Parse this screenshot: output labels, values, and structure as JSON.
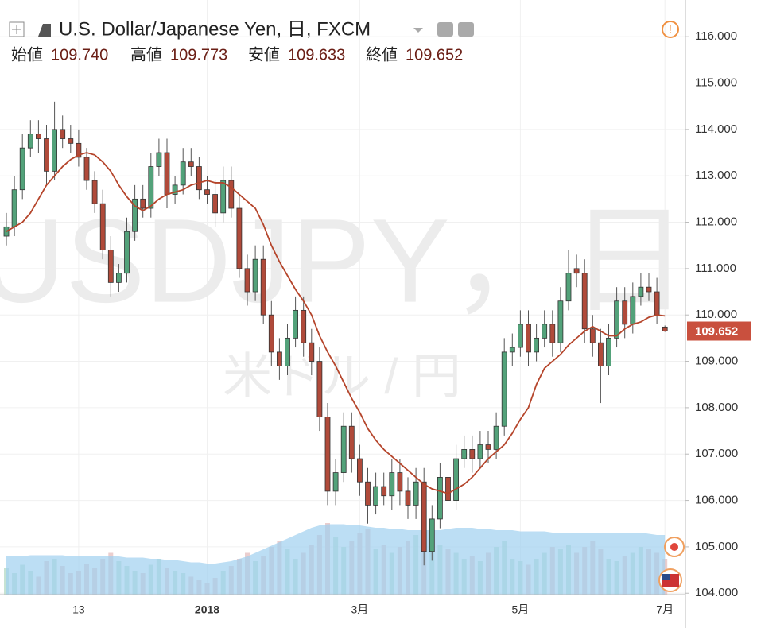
{
  "header": {
    "title": "U.S. Dollar/Japanese Yen, 日, FXCM",
    "labels": [
      "始値",
      "高値",
      "安値",
      "終値"
    ],
    "values": [
      "109.740",
      "109.773",
      "109.633",
      "109.652"
    ]
  },
  "watermark": {
    "symbol": "USDJPY，日",
    "name": "米ドル / 円"
  },
  "chart_data": {
    "type": "candlestick",
    "categories": [
      null,
      null,
      null,
      null,
      null,
      null,
      null,
      null,
      null,
      "13",
      null,
      null,
      null,
      null,
      null,
      null,
      null,
      null,
      null,
      null,
      null,
      null,
      null,
      null,
      null,
      "2018",
      null,
      null,
      null,
      null,
      null,
      null,
      null,
      null,
      null,
      null,
      null,
      null,
      null,
      null,
      null,
      null,
      null,
      null,
      "3月",
      null,
      null,
      null,
      null,
      null,
      null,
      null,
      null,
      null,
      null,
      null,
      null,
      null,
      null,
      null,
      null,
      null,
      null,
      null,
      "5月",
      null,
      null,
      null,
      null,
      null,
      null,
      null,
      null,
      null,
      null,
      null,
      null,
      null,
      null,
      null,
      null,
      null,
      "7月"
    ],
    "open": [
      111.7,
      111.9,
      112.7,
      113.6,
      113.9,
      113.8,
      113.1,
      114.0,
      113.8,
      113.7,
      113.4,
      112.9,
      112.4,
      111.4,
      110.7,
      110.9,
      111.8,
      112.5,
      112.3,
      113.2,
      113.5,
      112.6,
      112.8,
      113.3,
      113.2,
      112.7,
      112.6,
      112.2,
      112.9,
      112.3,
      111.0,
      110.5,
      111.2,
      110.0,
      109.2,
      108.9,
      109.5,
      110.1,
      109.4,
      109.0,
      107.8,
      106.2,
      106.6,
      107.6,
      106.9,
      106.4,
      105.9,
      106.3,
      106.1,
      106.6,
      106.2,
      105.9,
      106.4,
      104.9,
      105.6,
      106.5,
      106.0,
      106.9,
      107.1,
      106.9,
      107.2,
      107.1,
      107.6,
      109.2,
      109.3,
      109.8,
      109.2,
      109.5,
      109.8,
      109.4,
      110.3,
      111.0,
      110.9,
      109.7,
      109.4,
      108.9,
      109.5,
      110.3,
      109.8,
      110.4,
      110.6,
      110.5,
      109.74
    ],
    "high": [
      112.2,
      113.0,
      113.9,
      114.2,
      114.2,
      114.1,
      114.6,
      114.3,
      114.1,
      114.0,
      113.6,
      113.1,
      112.7,
      111.7,
      111.1,
      112.1,
      112.8,
      112.8,
      113.5,
      113.8,
      113.8,
      113.0,
      113.6,
      113.6,
      113.4,
      113.0,
      112.9,
      113.2,
      113.2,
      112.6,
      111.3,
      111.5,
      111.5,
      110.3,
      109.5,
      109.8,
      110.4,
      110.4,
      109.7,
      109.3,
      108.1,
      106.9,
      107.9,
      107.9,
      107.2,
      106.7,
      106.6,
      106.6,
      106.9,
      106.9,
      106.5,
      106.7,
      106.7,
      105.9,
      106.8,
      106.8,
      107.2,
      107.4,
      107.4,
      107.5,
      107.5,
      107.9,
      109.5,
      109.6,
      110.1,
      110.1,
      109.8,
      110.1,
      110.1,
      110.6,
      111.4,
      111.3,
      111.2,
      110.0,
      109.7,
      109.8,
      110.6,
      110.6,
      110.7,
      110.9,
      110.9,
      110.8,
      109.773
    ],
    "low": [
      111.5,
      111.7,
      112.5,
      113.4,
      113.5,
      112.8,
      112.9,
      113.6,
      113.5,
      113.2,
      112.7,
      112.2,
      111.2,
      110.4,
      110.5,
      110.7,
      111.6,
      112.1,
      112.1,
      113.0,
      112.3,
      112.4,
      112.6,
      113.0,
      112.5,
      112.4,
      111.9,
      112.0,
      112.1,
      110.8,
      110.2,
      110.3,
      109.8,
      108.9,
      108.6,
      108.7,
      109.3,
      109.1,
      108.7,
      107.5,
      105.9,
      105.9,
      106.4,
      106.6,
      106.1,
      105.5,
      105.7,
      105.9,
      105.8,
      105.9,
      105.6,
      105.6,
      104.6,
      104.7,
      105.4,
      105.7,
      105.8,
      106.7,
      106.6,
      106.7,
      106.8,
      106.9,
      107.4,
      108.9,
      109.1,
      108.9,
      109.0,
      109.3,
      109.1,
      109.2,
      110.1,
      110.6,
      109.4,
      109.1,
      108.1,
      108.7,
      109.3,
      109.5,
      109.6,
      110.2,
      110.3,
      109.8,
      109.633
    ],
    "close": [
      111.9,
      112.7,
      113.6,
      113.9,
      113.8,
      113.1,
      114.0,
      113.8,
      113.7,
      113.4,
      112.9,
      112.4,
      111.4,
      110.7,
      110.9,
      111.8,
      112.5,
      112.3,
      113.2,
      113.5,
      112.6,
      112.8,
      113.3,
      113.2,
      112.7,
      112.6,
      112.2,
      112.9,
      112.3,
      111.0,
      110.5,
      111.2,
      110.0,
      109.2,
      108.9,
      109.5,
      110.1,
      109.4,
      109.0,
      107.8,
      106.2,
      106.6,
      107.6,
      106.9,
      106.4,
      105.9,
      106.3,
      106.1,
      106.6,
      106.2,
      105.9,
      106.4,
      104.9,
      105.6,
      106.5,
      106.0,
      106.9,
      107.1,
      106.9,
      107.2,
      107.1,
      107.6,
      109.2,
      109.3,
      109.8,
      109.2,
      109.5,
      109.8,
      109.4,
      110.3,
      110.9,
      110.9,
      109.7,
      109.4,
      108.9,
      109.5,
      110.3,
      109.8,
      110.4,
      110.6,
      110.5,
      110.0,
      109.652
    ],
    "up_color": "#53a27a",
    "down_color": "#b04a3a",
    "moving_average": {
      "color": "#b5452b",
      "values": [
        111.8,
        111.9,
        112.0,
        112.2,
        112.5,
        112.8,
        113.0,
        113.2,
        113.35,
        113.45,
        113.5,
        113.45,
        113.3,
        113.1,
        112.8,
        112.55,
        112.35,
        112.25,
        112.35,
        112.5,
        112.6,
        112.65,
        112.7,
        112.8,
        112.85,
        112.9,
        112.85,
        112.85,
        112.75,
        112.6,
        112.45,
        112.3,
        111.95,
        111.5,
        111.15,
        110.85,
        110.55,
        110.3,
        110.0,
        109.55,
        109.2,
        108.9,
        108.55,
        108.2,
        107.9,
        107.55,
        107.3,
        107.1,
        106.95,
        106.8,
        106.65,
        106.5,
        106.35,
        106.25,
        106.2,
        106.15,
        106.25,
        106.35,
        106.5,
        106.7,
        106.9,
        107.05,
        107.2,
        107.45,
        107.75,
        108.0,
        108.5,
        108.85,
        109.0,
        109.15,
        109.35,
        109.5,
        109.65,
        109.75,
        109.65,
        109.55,
        109.55,
        109.7,
        109.8,
        109.85,
        109.95,
        110.0,
        109.98
      ]
    },
    "volume": {
      "color": "#c9a9b5",
      "ma_color": "#9fd0f0",
      "vlim": [
        0,
        100
      ],
      "values": [
        22,
        18,
        25,
        20,
        15,
        28,
        30,
        24,
        18,
        20,
        26,
        22,
        30,
        35,
        28,
        24,
        20,
        18,
        25,
        30,
        22,
        20,
        18,
        15,
        12,
        10,
        14,
        20,
        24,
        30,
        35,
        28,
        32,
        40,
        45,
        38,
        30,
        35,
        42,
        50,
        60,
        48,
        40,
        45,
        52,
        55,
        38,
        42,
        35,
        40,
        45,
        50,
        65,
        48,
        42,
        38,
        35,
        30,
        32,
        28,
        35,
        40,
        45,
        30,
        28,
        25,
        30,
        35,
        40,
        38,
        42,
        35,
        40,
        45,
        38,
        30,
        28,
        32,
        35,
        40,
        38,
        35,
        30
      ],
      "ma_values": [
        32,
        32,
        32,
        33,
        33,
        33,
        33,
        33,
        32,
        32,
        32,
        32,
        32,
        32,
        32,
        31,
        31,
        31,
        30,
        30,
        29,
        29,
        28,
        27,
        27,
        26,
        26,
        27,
        28,
        30,
        32,
        35,
        38,
        41,
        44,
        47,
        50,
        53,
        56,
        58,
        59,
        59,
        59,
        58,
        58,
        57,
        56,
        56,
        55,
        55,
        54,
        54,
        54,
        54,
        54,
        55,
        56,
        56,
        56,
        55,
        55,
        54,
        54,
        54,
        53,
        53,
        53,
        53,
        52,
        52,
        52,
        52,
        52,
        52,
        52,
        52,
        52,
        52,
        52,
        52,
        51,
        50,
        50
      ]
    },
    "ylim": [
      103.97,
      116.62
    ],
    "yticks": [
      {
        "value": 104,
        "label": "104.000"
      },
      {
        "value": 105,
        "label": "105.000"
      },
      {
        "value": 106,
        "label": "106.000"
      },
      {
        "value": 107,
        "label": "107.000"
      },
      {
        "value": 108,
        "label": "108.000"
      },
      {
        "value": 109,
        "label": "109.000"
      },
      {
        "value": 110,
        "label": "110.000"
      },
      {
        "value": 111,
        "label": "111.000"
      },
      {
        "value": 112,
        "label": "112.000"
      },
      {
        "value": 113,
        "label": "113.000"
      },
      {
        "value": 114,
        "label": "114.000"
      },
      {
        "value": 115,
        "label": "115.000"
      },
      {
        "value": 116,
        "label": "116.000"
      }
    ],
    "grid": true
  }
}
